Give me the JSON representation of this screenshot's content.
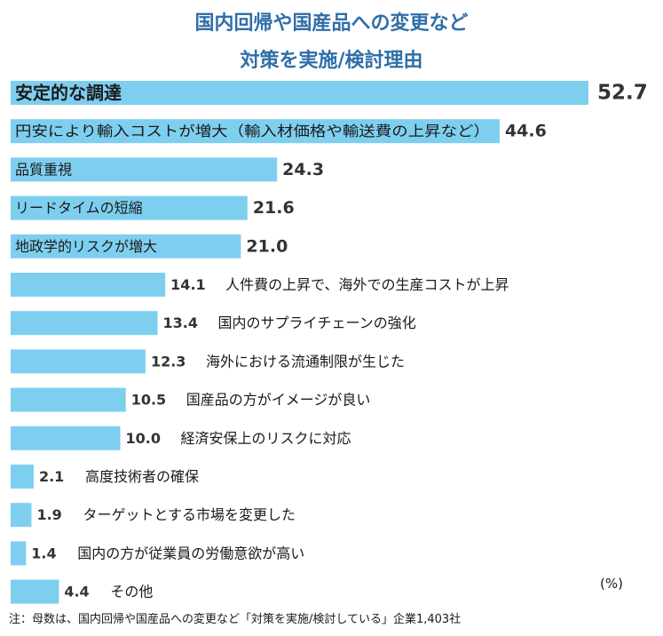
{
  "chart_data": {
    "type": "bar",
    "orientation": "horizontal",
    "title": "国内回帰や国産品への変更など",
    "subtitle": "対策を実施/検討理由",
    "unit": "(%)",
    "note": "注：母数は、国内回帰や国産品への変更など「対策を実施/検討している」企業1,403社",
    "bar_color": "#7ecfef",
    "xlim": [
      0,
      52.7
    ],
    "categories": [
      "安定的な調達",
      "円安により輸入コストが増大（輸入材価格や輸送費の上昇など）",
      "品質重視",
      "リードタイムの短縮",
      "地政学的リスクが増大",
      "人件費の上昇で、海外での生産コストが上昇",
      "国内のサプライチェーンの強化",
      "海外における流通制限が生じた",
      "国産品の方がイメージが良い",
      "経済安保上のリスクに対応",
      "高度技術者の確保",
      "ターゲットとする市場を変更した",
      "国内の方が従業員の労働意欲が高い",
      "その他"
    ],
    "values": [
      52.7,
      44.6,
      24.3,
      21.6,
      21.0,
      14.1,
      13.4,
      12.3,
      10.5,
      10.0,
      2.1,
      1.9,
      1.4,
      4.4
    ],
    "value_labels": [
      "52.7",
      "44.6",
      "24.3",
      "21.6",
      "21.0",
      "14.1",
      "13.4",
      "12.3",
      "10.5",
      "10.0",
      "2.1",
      "1.9",
      "1.4",
      "4.4"
    ]
  }
}
